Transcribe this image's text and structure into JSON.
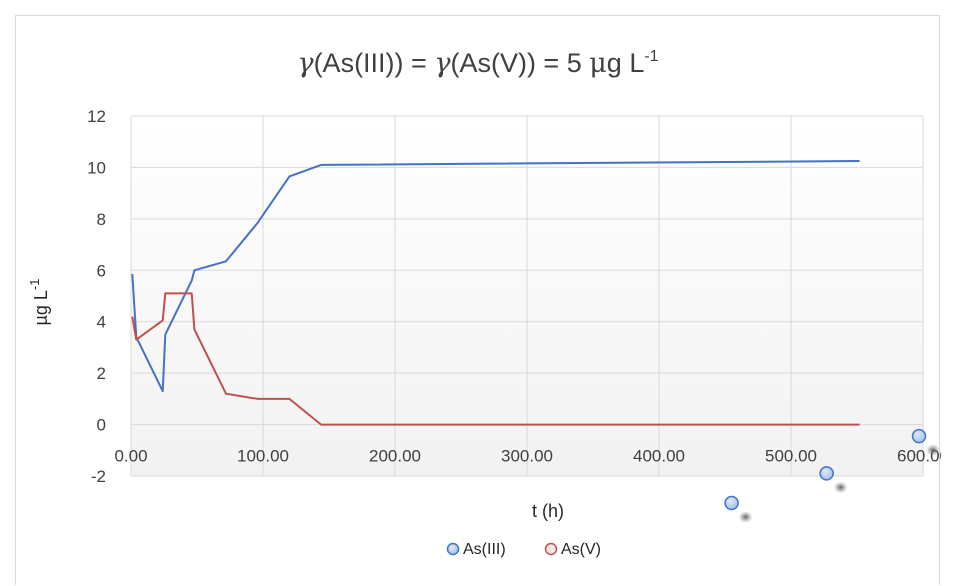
{
  "chart_data": {
    "type": "line",
    "title": {
      "symbol_1": "γ",
      "part_1": "(As(III)) = ",
      "symbol_2": "γ",
      "part_2": "(As(V)) = 5 ",
      "unit_mu": "μ",
      "unit_rest": "g L",
      "unit_exp": "-1"
    },
    "xlabel": "t (h)",
    "ylabel": {
      "base": "µg L",
      "exp": "-1"
    },
    "xlim": [
      0,
      600
    ],
    "ylim": [
      -2,
      12
    ],
    "x_ticks": [
      "0.00",
      "100.00",
      "200.00",
      "300.00",
      "400.00",
      "500.00",
      "600.00"
    ],
    "y_ticks": [
      "-2",
      "0",
      "2",
      "4",
      "6",
      "8",
      "10",
      "12"
    ],
    "grid": true,
    "legend_position": "bottom",
    "series": [
      {
        "name": "As(III)",
        "color": "#4472c4",
        "x": [
          1,
          4,
          24,
          26,
          46,
          48,
          72,
          96,
          120,
          144,
          552
        ],
        "y": [
          5.85,
          3.4,
          1.3,
          3.5,
          5.6,
          6.0,
          6.35,
          7.85,
          9.65,
          10.1,
          10.25
        ]
      },
      {
        "name": "As(V)",
        "color": "#c0504d",
        "x": [
          1,
          4,
          24,
          26,
          46,
          48,
          72,
          96,
          120,
          144,
          552
        ],
        "y": [
          4.2,
          3.3,
          4.05,
          5.1,
          5.1,
          3.7,
          1.2,
          1.0,
          1.0,
          0.0,
          0.0
        ]
      }
    ]
  },
  "decorations": {
    "stray_markers": [
      {
        "x": 455,
        "y": -3.05
      },
      {
        "x": 527,
        "y": -1.9
      },
      {
        "x": 597,
        "y": -0.45
      }
    ],
    "stray_marker_color": "#4472c4"
  }
}
